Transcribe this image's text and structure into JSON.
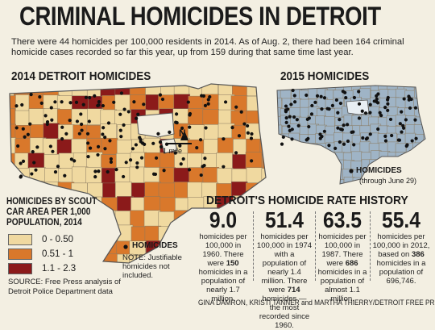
{
  "title": "CRIMINAL HOMICIDES IN DETROIT",
  "intro": "There were 44 homicides per 100,000 residents in 2014. As of Aug. 2, there had been 164 criminal homicide cases recorded so far this year, up from 159 during that same time last year.",
  "map2014": {
    "heading": "2014 DETROIT HOMICIDES",
    "north_label": "N",
    "scale_label": "1 mile",
    "legend": {
      "title": "HOMICIDES BY SCOUT CAR AREA PER 1,000 POPULATION, 2014",
      "items": [
        {
          "label": "0 - 0.50",
          "color": "#f0d9a0"
        },
        {
          "label": "0.51 - 1",
          "color": "#d9782b"
        },
        {
          "label": "1.1 - 2.3",
          "color": "#8b1a1a"
        }
      ]
    },
    "homicides_key": "HOMICIDES",
    "note": "NOTE: Justifiable homicides not included."
  },
  "map2015": {
    "heading": "2015 HOMICIDES",
    "homicides_key": "HOMICIDES",
    "through": "(through June 29)",
    "fill_color": "#9fb4c6"
  },
  "source": "SOURCE: Free Press analysis of Detroit Police Department data",
  "rate_history": {
    "heading": "DETROIT'S HOMICIDE RATE HISTORY",
    "stats": [
      {
        "value": "9.0",
        "text_before": "homicides per 100,000 in 1960. There were ",
        "bold": "150",
        "text_after": " homicides in a population of nearly 1.7 million."
      },
      {
        "value": "51.4",
        "text_before": "homicides per 100,000 in 1974 with a population of nearly 1.4 million. There were ",
        "bold": "714",
        "text_after": " homicides — the most recorded since 1960."
      },
      {
        "value": "63.5",
        "text_before": "homicides per 100,000 in 1987. There were ",
        "bold": "686",
        "text_after": " homicides in a population of almost 1.1 million."
      },
      {
        "value": "55.4",
        "text_before": "homicides per 100,000 in 2012, based on ",
        "bold": "386",
        "text_after": " homicides in a population of 696,746."
      }
    ]
  },
  "credit": "GINA DAMRON, KRISTI TANNER and MARTHA THIERRY/DETROIT FREE PRESS"
}
